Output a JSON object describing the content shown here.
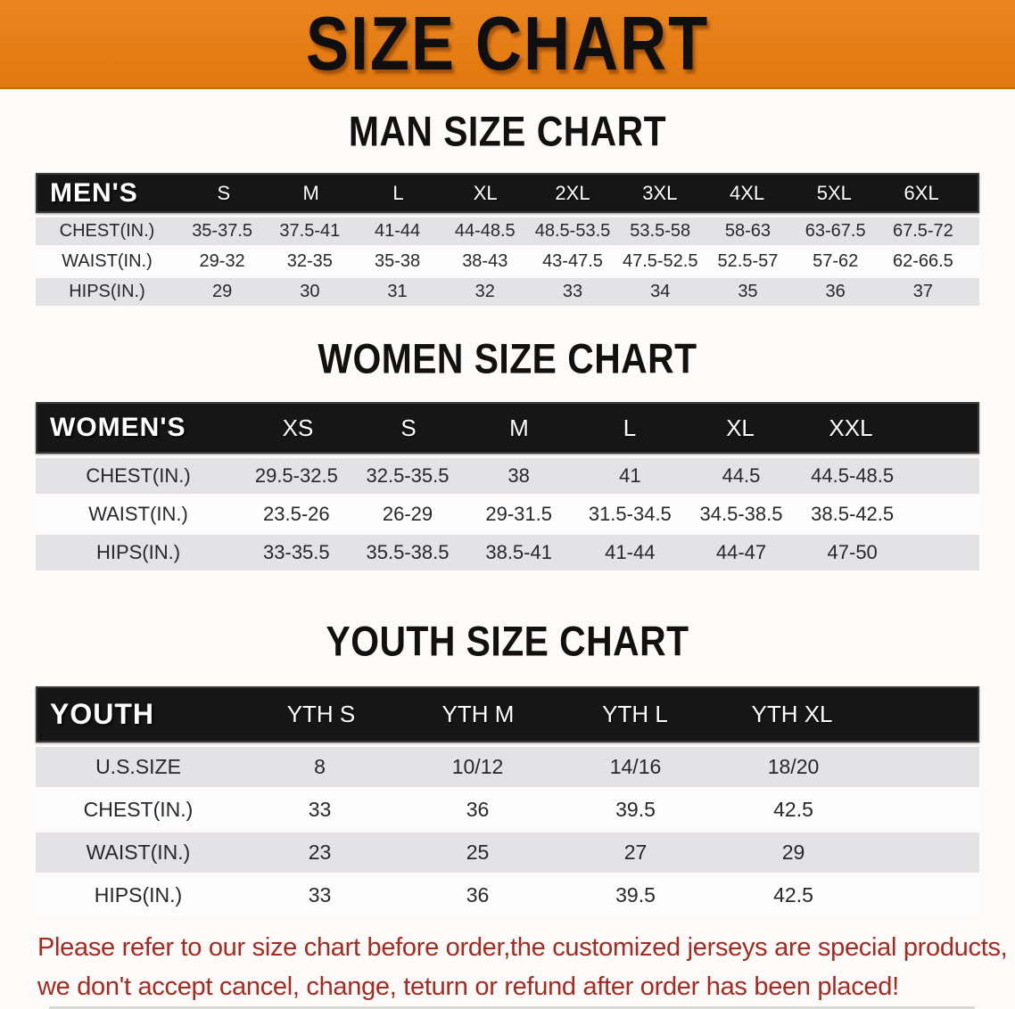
{
  "banner": {
    "title": "SIZE CHART",
    "bg_color": "#e67e17",
    "text_color": "#0f0f0f"
  },
  "colors": {
    "table_header_bg": "#161616",
    "row_gray": "#e3e3e5",
    "row_white": "#fdfdfd",
    "note_red": "#a8291f"
  },
  "sections": [
    {
      "id": "men",
      "heading": "MAN SIZE CHART",
      "table": {
        "header_label": "MEN'S",
        "columns": [
          "S",
          "M",
          "L",
          "XL",
          "2XL",
          "3XL",
          "4XL",
          "5XL",
          "6XL"
        ],
        "rows": [
          {
            "label": "CHEST(IN.)",
            "values": [
              "35-37.5",
              "37.5-41",
              "41-44",
              "44-48.5",
              "48.5-53.5",
              "53.5-58",
              "58-63",
              "63-67.5",
              "67.5-72"
            ]
          },
          {
            "label": "WAIST(IN.)",
            "values": [
              "29-32",
              "32-35",
              "35-38",
              "38-43",
              "43-47.5",
              "47.5-52.5",
              "52.5-57",
              "57-62",
              "62-66.5"
            ]
          },
          {
            "label": "HIPS(IN.)",
            "values": [
              "29",
              "30",
              "31",
              "32",
              "33",
              "34",
              "35",
              "36",
              "37"
            ]
          }
        ]
      }
    },
    {
      "id": "women",
      "heading": "WOMEN SIZE CHART",
      "table": {
        "header_label": "WOMEN'S",
        "columns": [
          "XS",
          "S",
          "M",
          "L",
          "XL",
          "XXL"
        ],
        "rows": [
          {
            "label": "CHEST(IN.)",
            "values": [
              "29.5-32.5",
              "32.5-35.5",
              "38",
              "41",
              "44.5",
              "44.5-48.5"
            ]
          },
          {
            "label": "WAIST(IN.)",
            "values": [
              "23.5-26",
              "26-29",
              "29-31.5",
              "31.5-34.5",
              "34.5-38.5",
              "38.5-42.5"
            ]
          },
          {
            "label": "HIPS(IN.)",
            "values": [
              "33-35.5",
              "35.5-38.5",
              "38.5-41",
              "41-44",
              "44-47",
              "47-50"
            ]
          }
        ]
      }
    },
    {
      "id": "youth",
      "heading": "YOUTH SIZE CHART",
      "table": {
        "header_label": "YOUTH",
        "columns": [
          "YTH S",
          "YTH M",
          "YTH L",
          "YTH XL"
        ],
        "rows": [
          {
            "label": "U.S.SIZE",
            "values": [
              "8",
              "10/12",
              "14/16",
              "18/20"
            ]
          },
          {
            "label": "CHEST(IN.)",
            "values": [
              "33",
              "36",
              "39.5",
              "42.5"
            ]
          },
          {
            "label": "WAIST(IN.)",
            "values": [
              "23",
              "25",
              "27",
              "29"
            ]
          },
          {
            "label": "HIPS(IN.)",
            "values": [
              "33",
              "36",
              "39.5",
              "42.5"
            ]
          }
        ]
      }
    }
  ],
  "footer_note": {
    "line1": "Please refer to our size chart before order,the customized jerseys are special products,",
    "line2": "we don't accept cancel, change, teturn or refund after order has been placed!"
  }
}
